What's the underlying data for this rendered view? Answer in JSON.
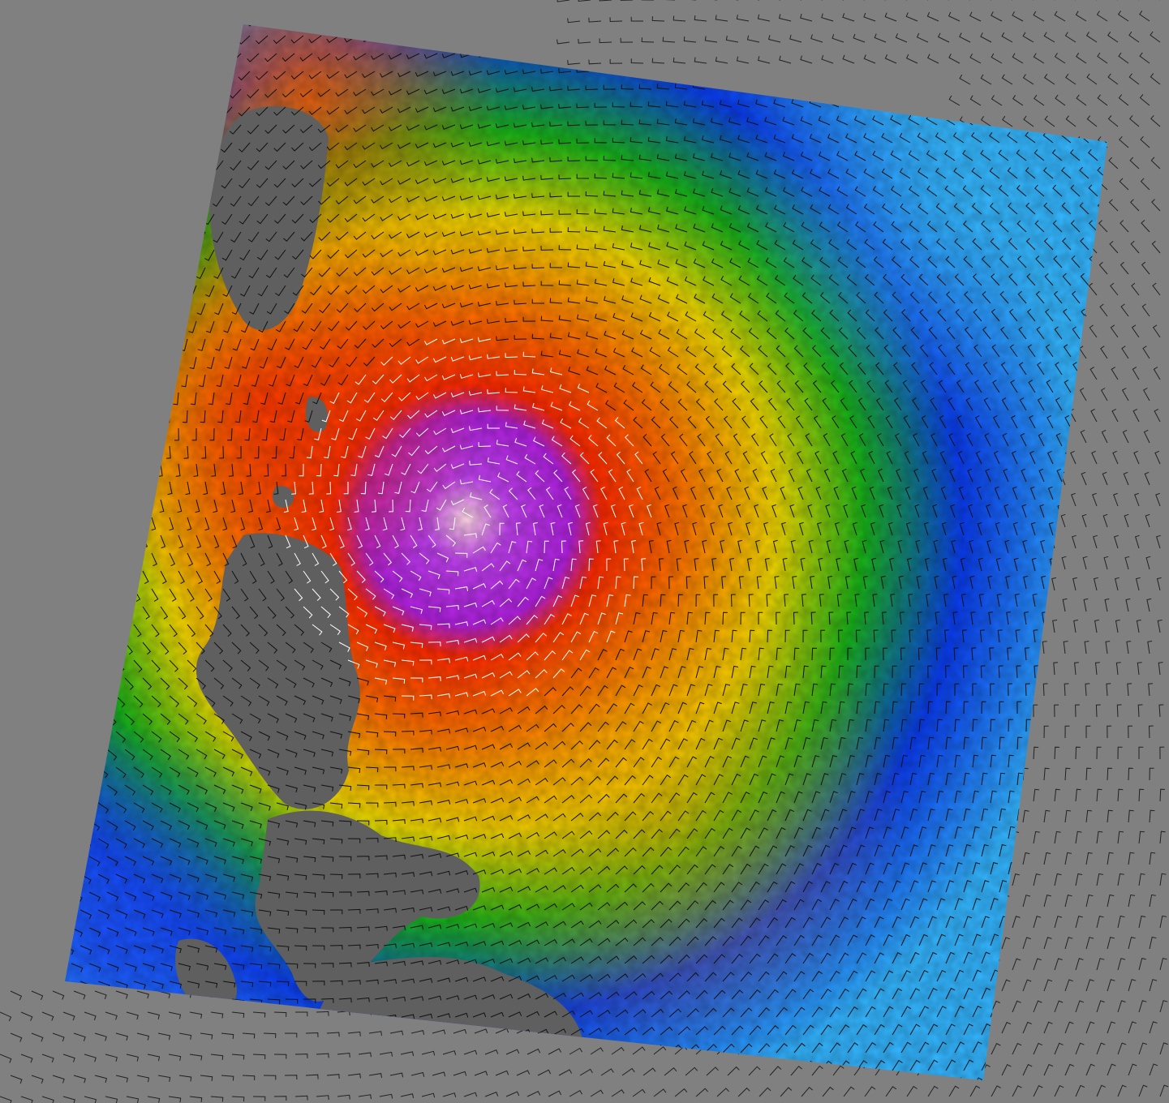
{
  "map": {
    "type": "scatterometer-wind-field",
    "background_color": "#808080",
    "land_color": "#5f5f5f",
    "wind_speed_palette": [
      "#33b5ff",
      "#0a3cf0",
      "#10b010",
      "#e8e800",
      "#ff9a00",
      "#ff2a00",
      "#b020e0",
      "#ffd0e0"
    ],
    "barb_colors": {
      "default": "#111111",
      "high_wind": "#ffffff",
      "outside_swath": "#222222"
    },
    "storm": {
      "rotation": "counterclockwise",
      "eye": "present"
    }
  }
}
